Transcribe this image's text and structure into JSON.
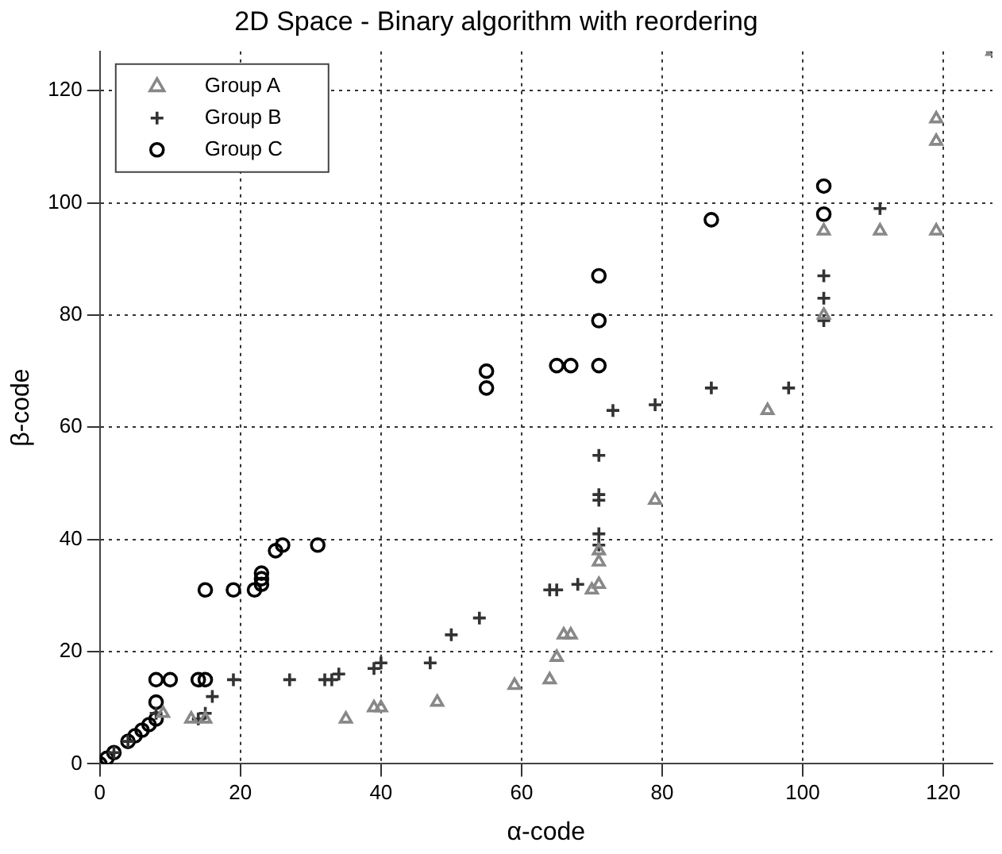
{
  "chart_data": {
    "type": "scatter",
    "title": "2D Space - Binary algorithm with reordering",
    "xlabel": "α-code",
    "ylabel": "β-code",
    "xlim": [
      0,
      127
    ],
    "ylim": [
      0,
      127
    ],
    "xticks": [
      0,
      20,
      40,
      60,
      80,
      100,
      120
    ],
    "yticks": [
      0,
      20,
      40,
      60,
      80,
      100,
      120
    ],
    "grid": true,
    "line_style": "dotted",
    "legend": "top left",
    "series": [
      {
        "name": "Group A",
        "color": "#888888",
        "marker": "triangle",
        "x": [
          9,
          13,
          15,
          35,
          39,
          40,
          48,
          59,
          64,
          65,
          66,
          67,
          70,
          71,
          71,
          71,
          79,
          95,
          103,
          103,
          111,
          119,
          119,
          119,
          127
        ],
        "values": [
          9,
          8,
          8,
          8,
          10,
          10,
          11,
          14,
          15,
          19,
          23,
          23,
          31,
          32,
          36,
          38,
          47,
          63,
          80,
          95,
          95,
          95,
          111,
          115,
          127
        ]
      },
      {
        "name": "Group B",
        "color": "#333333",
        "marker": "cross",
        "x": [
          2,
          4,
          8,
          14,
          15,
          16,
          19,
          27,
          32,
          33,
          34,
          39,
          40,
          47,
          50,
          54,
          64,
          65,
          68,
          71,
          71,
          71,
          71,
          71,
          73,
          79,
          87,
          98,
          103,
          103,
          103,
          111,
          127
        ],
        "values": [
          2,
          4,
          9,
          8,
          9,
          12,
          15,
          15,
          15,
          15,
          16,
          17,
          18,
          18,
          23,
          26,
          31,
          31,
          32,
          39,
          41,
          47,
          48,
          55,
          63,
          64,
          67,
          67,
          79,
          83,
          87,
          99,
          127
        ]
      },
      {
        "name": "Group C",
        "color": "#000000",
        "marker": "circle",
        "x": [
          0,
          1,
          2,
          3,
          4,
          5,
          6,
          7,
          8,
          8,
          8,
          10,
          14,
          15,
          15,
          19,
          22,
          23,
          23,
          23,
          25,
          26,
          31,
          55,
          55,
          65,
          67,
          71,
          71,
          71,
          87,
          103,
          103
        ],
        "values": [
          0,
          1,
          2,
          null,
          4,
          5,
          6,
          7,
          8,
          11,
          15,
          15,
          15,
          15,
          31,
          31,
          31,
          32,
          33,
          34,
          38,
          39,
          39,
          67,
          70,
          71,
          71,
          71,
          79,
          87,
          97,
          98,
          103
        ]
      }
    ]
  }
}
